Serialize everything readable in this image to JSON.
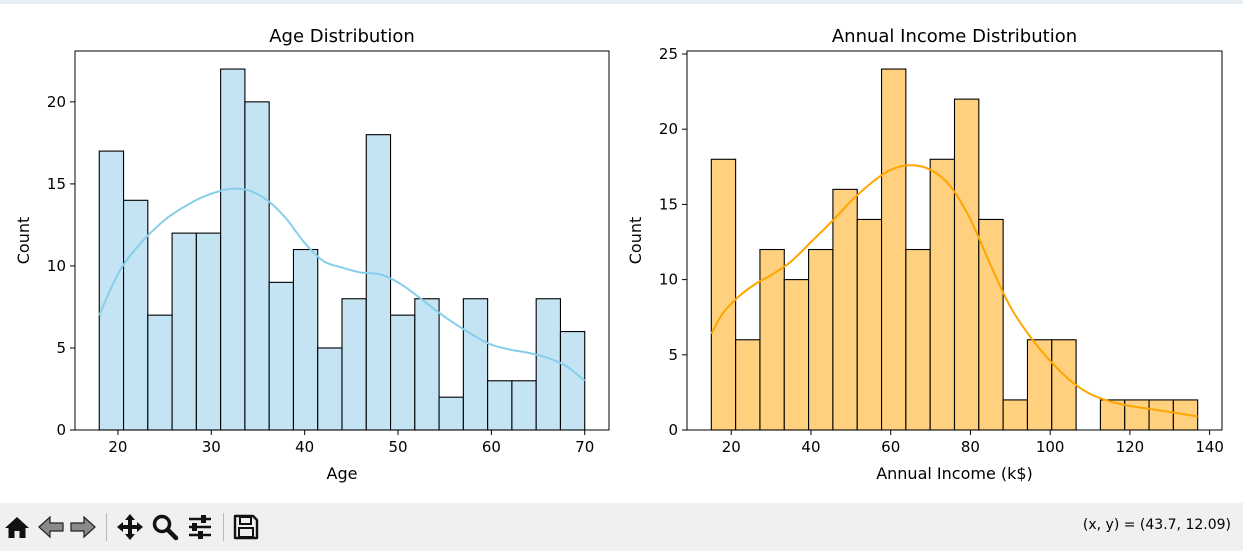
{
  "chart_data": [
    {
      "type": "bar",
      "title": "Age Distribution",
      "xlabel": "Age",
      "ylabel": "Count",
      "bin_start": 18,
      "bin_width": 2.6,
      "values": [
        17,
        14,
        7,
        12,
        12,
        22,
        20,
        9,
        11,
        5,
        8,
        18,
        7,
        8,
        2,
        8,
        3,
        3,
        8,
        6
      ],
      "xlim": [
        15.4,
        72.6
      ],
      "ylim": [
        0,
        23.1
      ],
      "xticks": [
        20,
        30,
        40,
        50,
        60,
        70
      ],
      "yticks": [
        0,
        5,
        10,
        15,
        20
      ],
      "bar_color": "#c4e4f3",
      "kde": {
        "x": [
          18,
          20,
          22,
          25,
          28,
          30,
          32,
          34,
          36,
          38,
          40,
          42,
          44,
          46,
          48,
          50,
          52,
          55,
          58,
          60,
          62,
          64,
          66,
          68,
          70
        ],
        "y": [
          7.0,
          9.5,
          11.1,
          12.8,
          13.9,
          14.4,
          14.7,
          14.6,
          14.0,
          12.9,
          11.4,
          10.3,
          9.9,
          9.6,
          9.5,
          9.0,
          8.2,
          6.9,
          5.8,
          5.2,
          4.9,
          4.7,
          4.4,
          3.9,
          3.0
        ],
        "color": "#87ceeb"
      }
    },
    {
      "type": "bar",
      "title": "Annual Income Distribution",
      "xlabel": "Annual Income (k$)",
      "ylabel": "Count",
      "bin_start": 15,
      "bin_width": 6.1,
      "values": [
        18,
        6,
        12,
        10,
        12,
        16,
        14,
        24,
        12,
        18,
        22,
        14,
        2,
        6,
        6,
        0,
        2,
        2,
        2,
        2
      ],
      "xlim": [
        8.9,
        143.1
      ],
      "ylim": [
        0,
        25.2
      ],
      "xticks": [
        20,
        40,
        60,
        80,
        100,
        120,
        140
      ],
      "yticks": [
        0,
        5,
        10,
        15,
        20,
        25
      ],
      "bar_color": "#ffd17f",
      "kde": {
        "x": [
          15,
          18,
          22,
          26,
          30,
          35,
          40,
          45,
          50,
          55,
          60,
          65,
          70,
          75,
          80,
          85,
          90,
          95,
          100,
          105,
          110,
          115,
          120,
          125,
          130,
          137
        ],
        "y": [
          6.4,
          7.8,
          8.9,
          9.7,
          10.3,
          11.2,
          12.5,
          13.8,
          15.2,
          16.4,
          17.3,
          17.6,
          17.3,
          16.2,
          14.0,
          11.0,
          8.2,
          6.2,
          4.6,
          3.3,
          2.4,
          1.9,
          1.6,
          1.4,
          1.2,
          0.9
        ],
        "color": "#ffa500"
      }
    }
  ],
  "toolbar": {
    "icons": [
      "home-icon",
      "back-arrow-icon",
      "forward-arrow-icon",
      "pan-icon",
      "zoom-icon",
      "configure-subplots-icon",
      "save-icon"
    ],
    "coords": "(x, y) = (43.7, 12.09)"
  }
}
